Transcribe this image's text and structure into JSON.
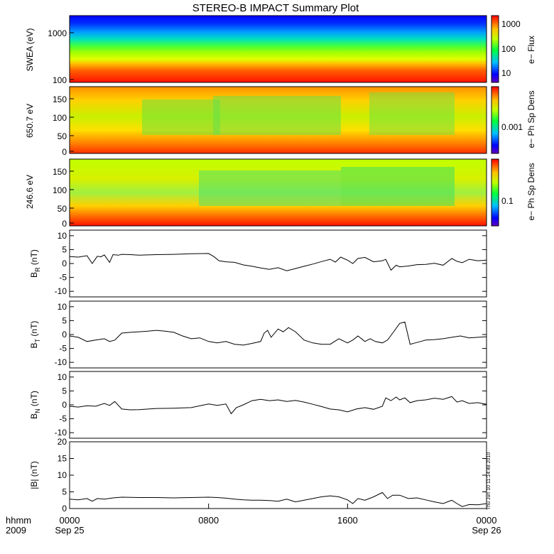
{
  "chart_data": {
    "type": "line",
    "title": "STEREO-B IMPACT Summary Plot",
    "stamp": "Thu Jun 10 11:14:48 2010",
    "x_axis": {
      "label_top": "hhmm",
      "label_bottom": "2009",
      "ticks": [
        {
          "hours": 0,
          "top": "0000",
          "bottom": "Sep 25"
        },
        {
          "hours": 8,
          "top": "0800",
          "bottom": ""
        },
        {
          "hours": 16,
          "top": "1600",
          "bottom": ""
        },
        {
          "hours": 24,
          "top": "0000",
          "bottom": "Sep 26"
        }
      ],
      "range_hours": [
        0,
        24
      ]
    },
    "spectrograms": [
      {
        "id": "swea",
        "ylabel": "SWEA (eV)",
        "yscale": "log",
        "ylim": [
          90,
          2000
        ],
        "yticks": [
          "1000",
          "100"
        ],
        "colorbar_label": "e− Flux",
        "colorbar_ticks": [
          "1000",
          "100",
          "10"
        ]
      },
      {
        "id": "pad650",
        "ylabel": "650.7 eV",
        "ylim": [
          0,
          180
        ],
        "yticks": [
          "150",
          "100",
          "50",
          "0"
        ],
        "colorbar_label": "e− Ph Sp Dens",
        "colorbar_ticks": [
          "0.001"
        ]
      },
      {
        "id": "pad246",
        "ylabel": "246.6 eV",
        "ylim": [
          0,
          180
        ],
        "yticks": [
          "150",
          "100",
          "50",
          "0"
        ],
        "colorbar_label": "e− Ph Sp Dens",
        "colorbar_ticks": [
          "0.1"
        ]
      }
    ],
    "line_panels": [
      {
        "id": "br",
        "ylabel_main": "B",
        "ylabel_sub": "R",
        "ylabel_unit": "(nT)",
        "ylim": [
          -12,
          12
        ],
        "yticks": [
          "10",
          "5",
          "0",
          "-5",
          "-10"
        ],
        "series": {
          "x": [
            0,
            0.5,
            1,
            1.3,
            1.6,
            1.8,
            2,
            2.3,
            2.5,
            2.8,
            3,
            3.5,
            4,
            5,
            6,
            7,
            8,
            8.3,
            8.6,
            9,
            9.5,
            10,
            10.5,
            11,
            11.5,
            12,
            12.5,
            13,
            13.5,
            14,
            14.5,
            15,
            15.3,
            15.6,
            16,
            16.3,
            16.6,
            17,
            17.5,
            18,
            18.2,
            18.5,
            18.8,
            19,
            19.5,
            20,
            20.5,
            21,
            21.5,
            22,
            22.3,
            22.6,
            23,
            23.5,
            24
          ],
          "y": [
            2.5,
            2.3,
            2.8,
            0,
            2.6,
            2.4,
            3.1,
            0.4,
            3.2,
            3.0,
            3.3,
            3.2,
            3.0,
            3.2,
            3.3,
            3.5,
            3.6,
            2.5,
            1.0,
            0.6,
            0.4,
            -0.5,
            -1.0,
            -1.6,
            -2.1,
            -1.5,
            -2.6,
            -1.8,
            -1.0,
            -0.2,
            0.7,
            1.5,
            0.5,
            2.3,
            1.2,
            0,
            1.8,
            2.2,
            0.6,
            1.0,
            1.5,
            -2.4,
            -0.6,
            -1.2,
            -0.9,
            -0.4,
            -0.3,
            0.1,
            -0.6,
            1.8,
            0.8,
            0.3,
            1.5,
            1.0,
            1.2
          ]
        }
      },
      {
        "id": "bt",
        "ylabel_main": "B",
        "ylabel_sub": "T",
        "ylabel_unit": "(nT)",
        "ylim": [
          -12,
          12
        ],
        "yticks": [
          "10",
          "5",
          "0",
          "-5",
          "-10"
        ],
        "series": {
          "x": [
            0,
            0.5,
            1,
            1.5,
            2,
            2.3,
            2.6,
            3,
            3.5,
            4,
            4.5,
            5,
            5.5,
            6,
            6.5,
            7,
            7.5,
            8,
            8.5,
            9,
            9.5,
            10,
            10.5,
            11,
            11.2,
            11.4,
            11.6,
            12,
            12.3,
            12.6,
            13,
            13.5,
            14,
            14.5,
            15,
            15.5,
            16,
            16.3,
            16.6,
            17,
            17.3,
            17.6,
            18,
            18.3,
            18.6,
            19,
            19.3,
            19.6,
            19.9,
            20.2,
            20.5,
            21,
            21.5,
            22,
            22.5,
            23,
            23.5,
            24
          ],
          "y": [
            -0.5,
            -1.0,
            -2.5,
            -2.0,
            -1.5,
            -2.5,
            -2.0,
            0.5,
            0.8,
            1.0,
            1.2,
            1.5,
            1.2,
            0.8,
            -0.5,
            -1.5,
            -1.2,
            -2.5,
            -3.0,
            -2.5,
            -3.5,
            -3.8,
            -3.2,
            -2.5,
            0.5,
            1.5,
            -1.0,
            2.0,
            1.0,
            2.5,
            1.0,
            -2.0,
            -3.0,
            -3.5,
            -3.5,
            -1.5,
            -3.0,
            -2.0,
            -0.5,
            -2.5,
            -1.5,
            -2.5,
            -3.0,
            -2.0,
            0.5,
            4.0,
            4.5,
            -3.5,
            -3.0,
            -2.5,
            -2.0,
            -1.8,
            -1.5,
            -1.0,
            -0.5,
            -1.2,
            -1.0,
            -0.8
          ]
        }
      },
      {
        "id": "bn",
        "ylabel_main": "B",
        "ylabel_sub": "N",
        "ylabel_unit": "(nT)",
        "ylim": [
          -12,
          12
        ],
        "yticks": [
          "10",
          "5",
          "0",
          "-5",
          "-10"
        ],
        "series": {
          "x": [
            0,
            0.5,
            1,
            1.5,
            2,
            2.3,
            2.6,
            3,
            3.5,
            4,
            5,
            6,
            7,
            8,
            8.5,
            9,
            9.3,
            9.6,
            10,
            10.5,
            11,
            11.5,
            12,
            12.5,
            13,
            13.5,
            14,
            14.5,
            15,
            15.5,
            16,
            16.5,
            17,
            17.5,
            18,
            18.2,
            18.5,
            18.8,
            19,
            19.3,
            19.6,
            20,
            20.5,
            21,
            21.5,
            22,
            22.3,
            22.6,
            23,
            23.5,
            24
          ],
          "y": [
            -0.5,
            -0.8,
            -0.3,
            -0.5,
            0.5,
            -0.2,
            1.2,
            -1.5,
            -1.8,
            -1.7,
            -1.3,
            -1.2,
            -1.0,
            0.3,
            -0.2,
            0.3,
            -3.2,
            -1.0,
            0,
            1.5,
            2.0,
            1.5,
            1.8,
            1.2,
            1.6,
            1.0,
            0.2,
            -0.6,
            -1.5,
            -1.8,
            -2.5,
            -1.5,
            -1.0,
            -1.6,
            -0.5,
            2.5,
            1.5,
            2.8,
            1.8,
            2.5,
            0.8,
            1.5,
            1.8,
            2.4,
            2.0,
            3.0,
            1.0,
            1.5,
            0.5,
            0.8,
            0.2
          ]
        }
      },
      {
        "id": "bmag",
        "ylabel_main": "|B|",
        "ylabel_sub": "",
        "ylabel_unit": "(nT)",
        "ylim": [
          0,
          20
        ],
        "yticks": [
          "20",
          "15",
          "10",
          "5",
          "0"
        ],
        "series": {
          "x": [
            0,
            0.5,
            1,
            1.3,
            1.6,
            2,
            2.5,
            3,
            4,
            5,
            6,
            7,
            8,
            8.5,
            9,
            9.5,
            10,
            10.5,
            11,
            11.5,
            12,
            12.5,
            13,
            13.5,
            14,
            14.5,
            15,
            15.5,
            16,
            16.3,
            16.6,
            17,
            17.5,
            18,
            18.3,
            18.6,
            19,
            19.5,
            20,
            20.5,
            21,
            21.5,
            22,
            22.3,
            22.6,
            23,
            23.5,
            24
          ],
          "y": [
            2.8,
            2.6,
            3.0,
            2.2,
            3.0,
            2.8,
            3.2,
            3.4,
            3.3,
            3.3,
            3.2,
            3.3,
            3.4,
            3.3,
            3.1,
            2.8,
            2.6,
            2.5,
            2.5,
            2.4,
            2.2,
            2.8,
            2.0,
            2.5,
            3.0,
            3.5,
            3.8,
            3.5,
            2.6,
            1.5,
            3.0,
            2.5,
            3.5,
            4.8,
            3.0,
            4.0,
            4.0,
            3.0,
            3.2,
            2.6,
            2.0,
            1.5,
            2.5,
            1.5,
            0.6,
            1.2,
            1.1,
            1.5
          ]
        }
      }
    ]
  }
}
